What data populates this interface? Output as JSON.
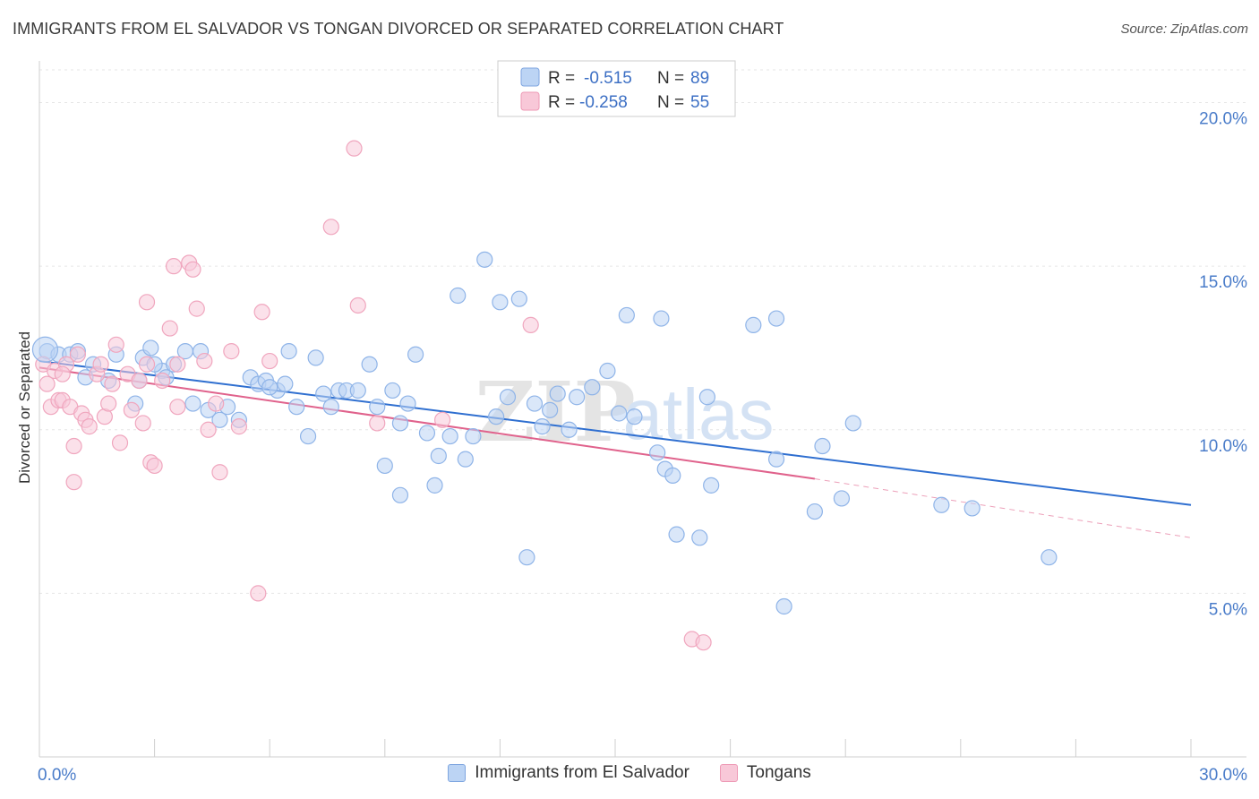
{
  "header": {
    "title": "IMMIGRANTS FROM EL SALVADOR VS TONGAN DIVORCED OR SEPARATED CORRELATION CHART",
    "source": "Source: ZipAtlas.com"
  },
  "watermark": {
    "zip": "ZIP",
    "atlas": "atlas"
  },
  "legend_top": {
    "rows": [
      {
        "r_label": "R =",
        "r_value": "-0.515",
        "n_label": "N =",
        "n_value": "89"
      },
      {
        "r_label": "R =",
        "r_value": "-0.258",
        "n_label": "N =",
        "n_value": "55"
      }
    ]
  },
  "chart_data": {
    "type": "scatter",
    "ylabel": "Divorced or Separated",
    "xlim": [
      0,
      30
    ],
    "ylim": [
      0,
      21
    ],
    "x_ticks": [
      0,
      3,
      6,
      9,
      12,
      15,
      18,
      21,
      24,
      27,
      30
    ],
    "x_tick_labels": [
      {
        "value": 0,
        "label": "0.0%"
      },
      {
        "value": 30,
        "label": "30.0%"
      }
    ],
    "y_tick_labels": [
      {
        "value": 5,
        "label": "5.0%"
      },
      {
        "value": 10,
        "label": "10.0%"
      },
      {
        "value": 15,
        "label": "15.0%"
      },
      {
        "value": 20,
        "label": "20.0%"
      }
    ],
    "grid": true,
    "series": [
      {
        "name": "Immigrants from El Salvador",
        "color": "#8fb4e8",
        "fill": "#bcd4f4",
        "line_color": "#2f6fd0",
        "trend": {
          "x0": 0,
          "y0": 12.1,
          "x1": 30,
          "y1": 7.7
        },
        "points": [
          [
            0.2,
            12.4
          ],
          [
            0.5,
            12.3
          ],
          [
            0.8,
            12.3
          ],
          [
            1.0,
            12.4
          ],
          [
            1.4,
            12.0
          ],
          [
            1.2,
            11.6
          ],
          [
            1.8,
            11.5
          ],
          [
            2.0,
            12.3
          ],
          [
            2.5,
            10.8
          ],
          [
            2.6,
            11.5
          ],
          [
            2.7,
            12.2
          ],
          [
            2.9,
            12.5
          ],
          [
            3.2,
            11.8
          ],
          [
            3.3,
            11.6
          ],
          [
            3.5,
            12.0
          ],
          [
            3.8,
            12.4
          ],
          [
            4.0,
            10.8
          ],
          [
            4.2,
            12.4
          ],
          [
            4.4,
            10.6
          ],
          [
            4.7,
            10.3
          ],
          [
            4.9,
            10.7
          ],
          [
            5.2,
            10.3
          ],
          [
            5.5,
            11.6
          ],
          [
            5.7,
            11.4
          ],
          [
            5.9,
            11.5
          ],
          [
            6.2,
            11.2
          ],
          [
            6.4,
            11.4
          ],
          [
            6.5,
            12.4
          ],
          [
            6.7,
            10.7
          ],
          [
            7.0,
            9.8
          ],
          [
            7.2,
            12.2
          ],
          [
            7.4,
            11.1
          ],
          [
            7.6,
            10.7
          ],
          [
            7.8,
            11.2
          ],
          [
            8.0,
            11.2
          ],
          [
            8.3,
            11.2
          ],
          [
            8.6,
            12.0
          ],
          [
            8.8,
            10.7
          ],
          [
            9.0,
            8.9
          ],
          [
            9.2,
            11.2
          ],
          [
            9.4,
            10.2
          ],
          [
            9.6,
            10.8
          ],
          [
            9.8,
            12.3
          ],
          [
            10.1,
            9.9
          ],
          [
            10.3,
            8.3
          ],
          [
            10.4,
            9.2
          ],
          [
            10.7,
            9.8
          ],
          [
            10.9,
            14.1
          ],
          [
            11.1,
            9.1
          ],
          [
            11.3,
            9.8
          ],
          [
            11.6,
            15.2
          ],
          [
            11.9,
            10.4
          ],
          [
            12.0,
            13.9
          ],
          [
            12.2,
            11.0
          ],
          [
            12.5,
            14.0
          ],
          [
            12.7,
            6.1
          ],
          [
            12.9,
            10.8
          ],
          [
            13.1,
            10.1
          ],
          [
            13.3,
            10.6
          ],
          [
            13.5,
            11.1
          ],
          [
            13.8,
            10.0
          ],
          [
            14.0,
            11.0
          ],
          [
            14.4,
            11.3
          ],
          [
            14.8,
            11.8
          ],
          [
            15.1,
            10.5
          ],
          [
            15.3,
            13.5
          ],
          [
            15.5,
            10.4
          ],
          [
            16.1,
            9.3
          ],
          [
            16.2,
            13.4
          ],
          [
            16.3,
            8.8
          ],
          [
            16.5,
            8.6
          ],
          [
            16.6,
            6.8
          ],
          [
            17.2,
            6.7
          ],
          [
            17.4,
            11.0
          ],
          [
            17.5,
            8.3
          ],
          [
            18.6,
            13.2
          ],
          [
            19.2,
            13.4
          ],
          [
            19.2,
            9.1
          ],
          [
            19.4,
            4.6
          ],
          [
            20.2,
            7.5
          ],
          [
            20.4,
            9.5
          ],
          [
            20.9,
            7.9
          ],
          [
            21.2,
            10.2
          ],
          [
            23.5,
            7.7
          ],
          [
            24.3,
            7.6
          ],
          [
            26.3,
            6.1
          ],
          [
            9.4,
            8.0
          ],
          [
            6.0,
            11.3
          ],
          [
            3.0,
            12.0
          ]
        ]
      },
      {
        "name": "Tongans",
        "color": "#f0a6be",
        "fill": "#f8c8d8",
        "line_color": "#e0628c",
        "trend": {
          "x0": 0,
          "y0": 11.9,
          "x1": 20.2,
          "y1": 8.5
        },
        "trend_ext": {
          "x0": 20.2,
          "y0": 8.5,
          "x1": 30,
          "y1": 6.7
        },
        "points": [
          [
            0.1,
            12.0
          ],
          [
            0.2,
            11.4
          ],
          [
            0.3,
            10.7
          ],
          [
            0.4,
            11.8
          ],
          [
            0.5,
            10.9
          ],
          [
            0.6,
            10.9
          ],
          [
            0.7,
            12.0
          ],
          [
            0.8,
            10.7
          ],
          [
            0.9,
            9.5
          ],
          [
            0.9,
            8.4
          ],
          [
            1.1,
            10.5
          ],
          [
            1.2,
            10.3
          ],
          [
            1.3,
            10.1
          ],
          [
            1.5,
            11.7
          ],
          [
            1.6,
            12.0
          ],
          [
            1.7,
            10.4
          ],
          [
            1.8,
            10.8
          ],
          [
            1.9,
            11.4
          ],
          [
            2.0,
            12.6
          ],
          [
            2.1,
            9.6
          ],
          [
            2.3,
            11.7
          ],
          [
            2.4,
            10.6
          ],
          [
            2.6,
            11.5
          ],
          [
            2.7,
            10.2
          ],
          [
            2.8,
            12.0
          ],
          [
            2.8,
            13.9
          ],
          [
            2.9,
            9.0
          ],
          [
            3.0,
            8.9
          ],
          [
            3.2,
            11.5
          ],
          [
            3.4,
            13.1
          ],
          [
            3.6,
            12.0
          ],
          [
            3.6,
            10.7
          ],
          [
            3.5,
            15.0
          ],
          [
            3.9,
            15.1
          ],
          [
            4.0,
            14.9
          ],
          [
            4.1,
            13.7
          ],
          [
            4.3,
            12.1
          ],
          [
            4.4,
            10.0
          ],
          [
            4.6,
            10.8
          ],
          [
            4.7,
            8.7
          ],
          [
            5.0,
            12.4
          ],
          [
            5.2,
            10.1
          ],
          [
            5.7,
            5.0
          ],
          [
            5.8,
            13.6
          ],
          [
            6.0,
            12.1
          ],
          [
            7.6,
            16.2
          ],
          [
            8.2,
            18.6
          ],
          [
            8.3,
            13.8
          ],
          [
            8.8,
            10.2
          ],
          [
            10.5,
            10.3
          ],
          [
            12.8,
            13.2
          ],
          [
            17.0,
            3.6
          ],
          [
            17.3,
            3.5
          ],
          [
            1.0,
            12.3
          ],
          [
            0.6,
            11.7
          ]
        ]
      }
    ]
  },
  "bottom_legend": [
    {
      "label": "Immigrants from El Salvador",
      "fill": "#bcd4f4",
      "border": "#7fa6e0"
    },
    {
      "label": "Tongans",
      "fill": "#f8c8d8",
      "border": "#ee9ab6"
    }
  ]
}
